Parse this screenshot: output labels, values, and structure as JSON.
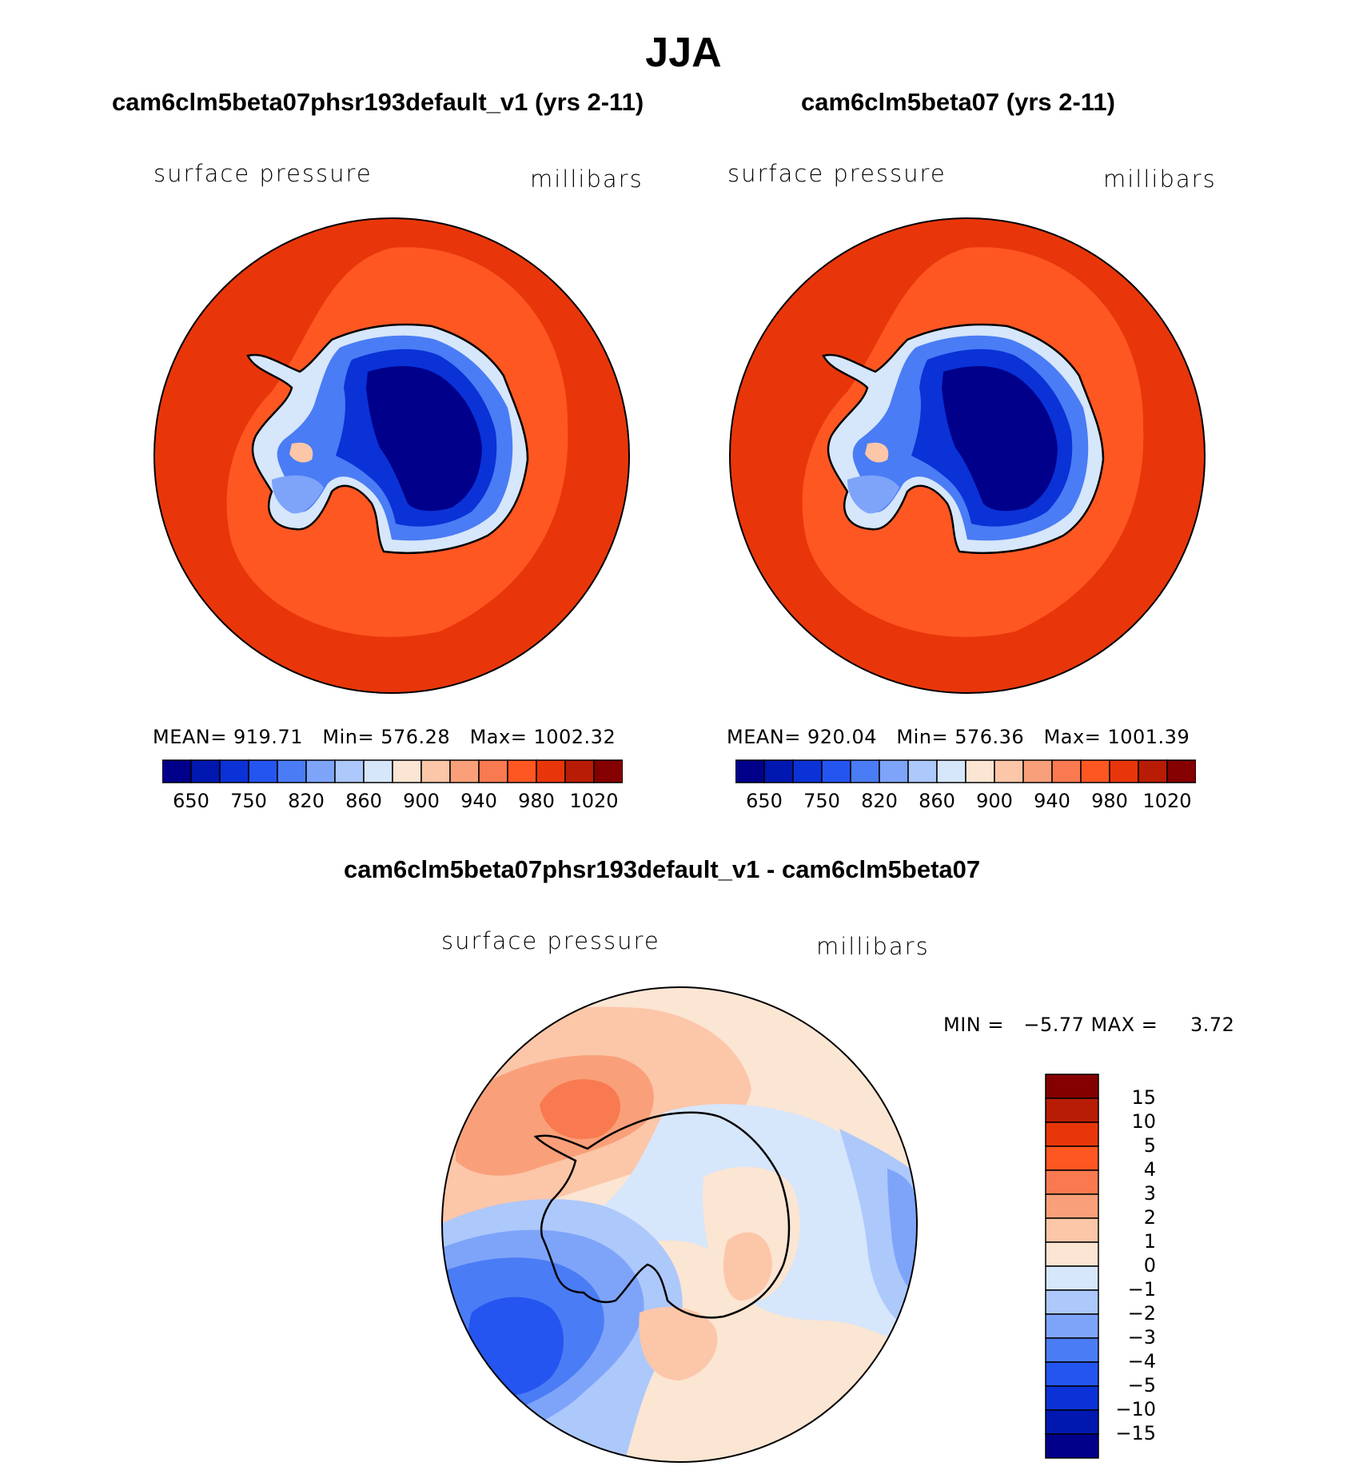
{
  "season": "JJA",
  "panels": [
    {
      "case": "cam6clm5beta07phsr193default_v1 (yrs 2-11)",
      "variable": "surface pressure",
      "units": "millibars",
      "stats": {
        "mean_label": "MEAN=",
        "mean": "919.71",
        "min_label": "Min=",
        "min": "576.28",
        "max_label": "Max=",
        "max": "1002.32"
      }
    },
    {
      "case": "cam6clm5beta07 (yrs 2-11)",
      "variable": "surface pressure",
      "units": "millibars",
      "stats": {
        "mean_label": "MEAN=",
        "mean": "920.04",
        "min_label": "Min=",
        "min": "576.36",
        "max_label": "Max=",
        "max": "1001.39"
      }
    }
  ],
  "diff": {
    "title": "cam6clm5beta07phsr193default_v1 - cam6clm5beta07",
    "variable": "surface pressure",
    "units": "millibars",
    "minmax_text": "MIN =   −5.77 MAX =     3.72"
  },
  "chart_data": [
    {
      "type": "heatmap",
      "projection": "south polar stereographic",
      "title": "cam6clm5beta07phsr193default_v1 (yrs 2-11)",
      "field": "surface pressure",
      "units": "millibars",
      "mean": 919.71,
      "min": 576.28,
      "max": 1002.32,
      "contour_levels": [
        650,
        700,
        750,
        800,
        820,
        840,
        860,
        880,
        900,
        920,
        940,
        960,
        980,
        1000,
        1020
      ],
      "colorbar_tick_labels": [
        "650",
        "750",
        "820",
        "860",
        "900",
        "940",
        "980",
        "1020"
      ],
      "colors": [
        "#00008b",
        "#0018b0",
        "#0a32d6",
        "#2455f0",
        "#4a7cf5",
        "#7ea4fa",
        "#adc8fb",
        "#d6e6fb",
        "#fbe5d3",
        "#fcc6a8",
        "#f9a07a",
        "#f97a50",
        "#ff5722",
        "#e8360a",
        "#b81c05",
        "#850000"
      ]
    },
    {
      "type": "heatmap",
      "projection": "south polar stereographic",
      "title": "cam6clm5beta07 (yrs 2-11)",
      "field": "surface pressure",
      "units": "millibars",
      "mean": 920.04,
      "min": 576.36,
      "max": 1001.39,
      "contour_levels": [
        650,
        700,
        750,
        800,
        820,
        840,
        860,
        880,
        900,
        920,
        940,
        960,
        980,
        1000,
        1020
      ],
      "colorbar_tick_labels": [
        "650",
        "750",
        "820",
        "860",
        "900",
        "940",
        "980",
        "1020"
      ],
      "colors": [
        "#00008b",
        "#0018b0",
        "#0a32d6",
        "#2455f0",
        "#4a7cf5",
        "#7ea4fa",
        "#adc8fb",
        "#d6e6fb",
        "#fbe5d3",
        "#fcc6a8",
        "#f9a07a",
        "#f97a50",
        "#ff5722",
        "#e8360a",
        "#b81c05",
        "#850000"
      ]
    },
    {
      "type": "heatmap",
      "projection": "south polar stereographic",
      "title": "cam6clm5beta07phsr193default_v1 - cam6clm5beta07",
      "field": "surface pressure",
      "units": "millibars",
      "min": -5.77,
      "max": 3.72,
      "contour_levels": [
        -15,
        -10,
        -5,
        -4,
        -3,
        -2,
        -1,
        0,
        1,
        2,
        3,
        4,
        5,
        10,
        15
      ],
      "colorbar_tick_labels": [
        "15",
        "10",
        "5",
        "4",
        "3",
        "2",
        "1",
        "0",
        "−1",
        "−2",
        "−3",
        "−4",
        "−5",
        "−10",
        "−15"
      ],
      "colors_top_to_bottom": [
        "#850000",
        "#b81c05",
        "#e8360a",
        "#ff5722",
        "#f97a50",
        "#f9a07a",
        "#fcc6a8",
        "#fbe5d3",
        "#d6e6fb",
        "#adc8fb",
        "#7ea4fa",
        "#4a7cf5",
        "#2455f0",
        "#0a32d6",
        "#0018b0",
        "#00008b"
      ]
    }
  ]
}
